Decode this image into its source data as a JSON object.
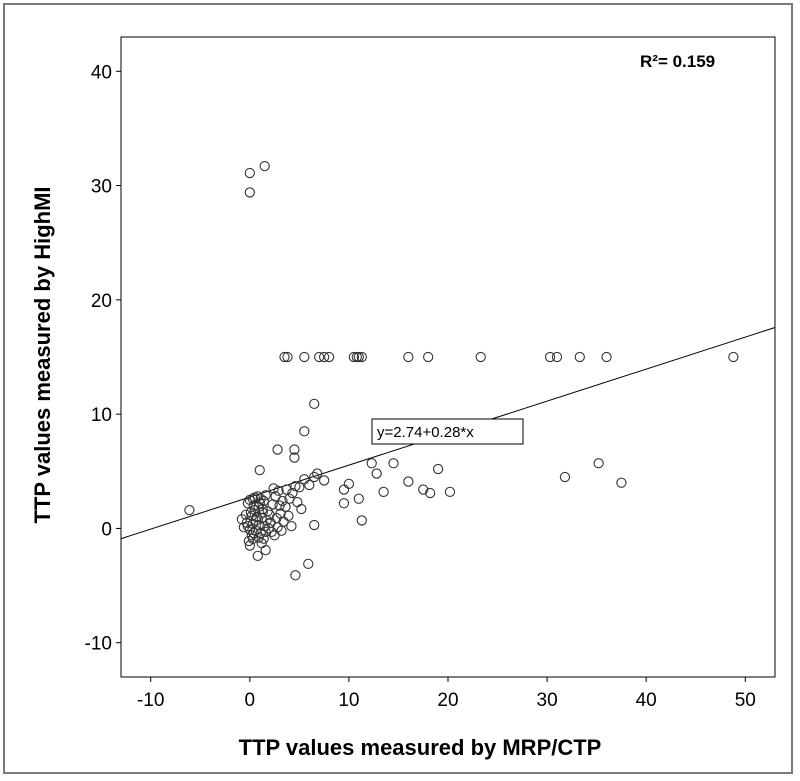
{
  "chart_data": {
    "type": "scatter",
    "xlabel": "TTP values measured by MRP/CTP",
    "ylabel": "TTP values measured by HighMI",
    "annotation_r2": "R²= 0.159",
    "fit_equation": "y=2.74+0.28*x",
    "fit": {
      "intercept": 2.74,
      "slope": 0.28
    },
    "xlim": [
      -13,
      53
    ],
    "ylim": [
      -13,
      43
    ],
    "xticks": [
      -10,
      0,
      10,
      20,
      30,
      40,
      50
    ],
    "yticks": [
      -10,
      0,
      10,
      20,
      30,
      40
    ],
    "xtick_labels": [
      "-10",
      "0",
      "10",
      "20",
      "30",
      "40",
      "50"
    ],
    "ytick_labels": [
      "-10",
      "0",
      "10",
      "20",
      "30",
      "40"
    ],
    "grid": false,
    "marker": "open-circle",
    "points": [
      [
        0,
        31.1
      ],
      [
        1.5,
        31.7
      ],
      [
        0,
        29.4
      ],
      [
        3.5,
        15
      ],
      [
        3.8,
        15
      ],
      [
        5.5,
        15
      ],
      [
        7,
        15
      ],
      [
        7.5,
        15
      ],
      [
        8,
        15
      ],
      [
        10.5,
        15
      ],
      [
        10.8,
        15
      ],
      [
        11,
        15
      ],
      [
        11.3,
        15
      ],
      [
        16,
        15
      ],
      [
        18,
        15
      ],
      [
        23.3,
        15
      ],
      [
        30.3,
        15
      ],
      [
        31,
        15
      ],
      [
        33.3,
        15
      ],
      [
        36,
        15
      ],
      [
        48.8,
        15
      ],
      [
        6.5,
        10.9
      ],
      [
        5.5,
        8.5
      ],
      [
        2.8,
        6.9
      ],
      [
        4.5,
        6.9
      ],
      [
        4.5,
        6.2
      ],
      [
        1,
        5.1
      ],
      [
        6.8,
        4.8
      ],
      [
        6.5,
        4.5
      ],
      [
        7.5,
        4.2
      ],
      [
        5.5,
        4.3
      ],
      [
        6,
        3.8
      ],
      [
        12.3,
        5.7
      ],
      [
        12.8,
        4.8
      ],
      [
        14.5,
        5.7
      ],
      [
        19,
        5.2
      ],
      [
        16,
        4.1
      ],
      [
        17.5,
        3.4
      ],
      [
        18.2,
        3.1
      ],
      [
        20.2,
        3.2
      ],
      [
        13.5,
        3.2
      ],
      [
        11,
        2.6
      ],
      [
        9.5,
        3.4
      ],
      [
        10,
        3.9
      ],
      [
        9.5,
        2.2
      ],
      [
        11.3,
        0.7
      ],
      [
        6.5,
        0.3
      ],
      [
        31.8,
        4.5
      ],
      [
        35.2,
        5.7
      ],
      [
        37.5,
        4
      ],
      [
        -6.1,
        1.6
      ],
      [
        4.6,
        -4.1
      ],
      [
        5.9,
        -3.1
      ],
      [
        0.8,
        -2.4
      ],
      [
        1.6,
        -1.9
      ],
      [
        0,
        -1.5
      ],
      [
        1.2,
        -1.3
      ],
      [
        0.3,
        -0.9
      ],
      [
        0,
        2.5
      ],
      [
        0.3,
        2.6
      ],
      [
        0.5,
        2.7
      ],
      [
        0.8,
        2.8
      ],
      [
        1.1,
        2.6
      ],
      [
        1.4,
        2.4
      ],
      [
        -0.2,
        2.2
      ],
      [
        0.4,
        2.0
      ],
      [
        0.9,
        1.9
      ],
      [
        1.3,
        1.7
      ],
      [
        1.8,
        1.5
      ],
      [
        -0.4,
        1.2
      ],
      [
        0.2,
        1.1
      ],
      [
        0.7,
        1.0
      ],
      [
        1.2,
        0.9
      ],
      [
        1.7,
        0.7
      ],
      [
        -0.8,
        0.8
      ],
      [
        -0.3,
        0.5
      ],
      [
        0.3,
        0.4
      ],
      [
        0.9,
        0.3
      ],
      [
        1.5,
        0.2
      ],
      [
        2.1,
        0.5
      ],
      [
        -0.6,
        0.1
      ],
      [
        0,
        -0.1
      ],
      [
        0.6,
        -0.2
      ],
      [
        1.1,
        -0.4
      ],
      [
        1.6,
        -0.3
      ],
      [
        0.2,
        -0.6
      ],
      [
        0.9,
        -0.8
      ],
      [
        1.4,
        -0.9
      ],
      [
        -0.1,
        -1.1
      ],
      [
        2.0,
        1.2
      ],
      [
        2.3,
        2.1
      ],
      [
        2.6,
        2.8
      ],
      [
        2.9,
        3.3
      ],
      [
        3.3,
        2.4
      ],
      [
        3.6,
        1.9
      ],
      [
        4.0,
        2.6
      ],
      [
        4.3,
        3.1
      ],
      [
        4.8,
        2.3
      ],
      [
        5.2,
        1.7
      ],
      [
        3.1,
        1.3
      ],
      [
        2.7,
        0.9
      ],
      [
        3.4,
        0.6
      ],
      [
        3.9,
        1.1
      ],
      [
        4.2,
        0.2
      ],
      [
        2.2,
        -0.3
      ],
      [
        2.8,
        0.1
      ],
      [
        3.2,
        -0.2
      ],
      [
        0.5,
        1.6
      ],
      [
        1.0,
        2.2
      ],
      [
        1.6,
        2.9
      ],
      [
        0.1,
        1.4
      ],
      [
        5.0,
        3.6
      ],
      [
        4.6,
        3.7
      ],
      [
        3.7,
        3.4
      ],
      [
        2.4,
        3.5
      ],
      [
        -0.2,
        0.2
      ],
      [
        0.6,
        0.7
      ],
      [
        1.9,
        0.0
      ],
      [
        2.5,
        -0.6
      ],
      [
        1.3,
        1.4
      ],
      [
        0.4,
        -0.4
      ],
      [
        3.0,
        2.0
      ]
    ]
  }
}
